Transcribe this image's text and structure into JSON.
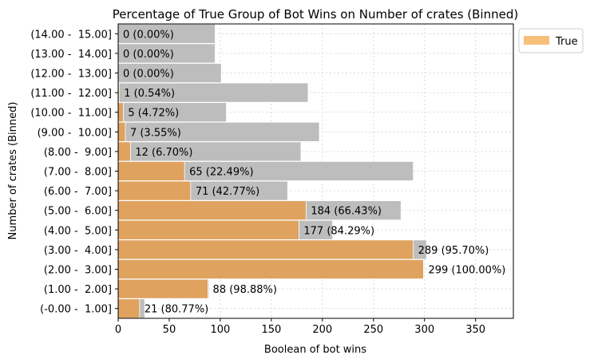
{
  "chart_data": {
    "type": "bar",
    "orientation": "horizontal",
    "title": "Percentage of True Group of Bot Wins on Number of crates (Binned)",
    "xlabel": "Boolean of bot wins",
    "ylabel": "Number of crates (Binned)",
    "xlim": [
      0,
      387
    ],
    "xticks": [
      0,
      50,
      100,
      150,
      200,
      250,
      300,
      350
    ],
    "grid": true,
    "legend": {
      "placement": "top-right outside plot",
      "entries": [
        "True"
      ]
    },
    "colors": {
      "total": "#bdbdbd",
      "true": "#e0a25f",
      "legend_true": "#f8bf7a",
      "grid": "#d9d9d9"
    },
    "categories": [
      "(-0.00 -  1.00]",
      "(1.00 -  2.00]",
      "(2.00 -  3.00]",
      "(3.00 -  4.00]",
      "(4.00 -  5.00]",
      "(5.00 -  6.00]",
      "(6.00 -  7.00]",
      "(7.00 -  8.00]",
      "(8.00 -  9.00]",
      "(9.00 -  10.00]",
      "(10.00 -  11.00]",
      "(11.00 -  12.00]",
      "(12.00 -  13.00]",
      "(13.00 -  14.00]",
      "(14.00 -  15.00]"
    ],
    "series": [
      {
        "values": [
          26,
          89,
          299,
          302,
          210,
          277,
          166,
          289,
          179,
          197,
          106,
          186,
          101,
          95,
          95
        ]
      },
      {
        "name": "True",
        "values": [
          21,
          88,
          299,
          289,
          177,
          184,
          71,
          65,
          12,
          7,
          5,
          1,
          0,
          0,
          0
        ]
      }
    ],
    "bar_labels": [
      "21 (80.77%)",
      "88 (98.88%)",
      "299 (100.00%)",
      "289 (95.70%)",
      "177 (84.29%)",
      "184 (66.43%)",
      "71 (42.77%)",
      "65 (22.49%)",
      "12 (6.70%)",
      "7 (3.55%)",
      "5 (4.72%)",
      "1 (0.54%)",
      "0 (0.00%)",
      "0 (0.00%)",
      "0 (0.00%)"
    ]
  }
}
